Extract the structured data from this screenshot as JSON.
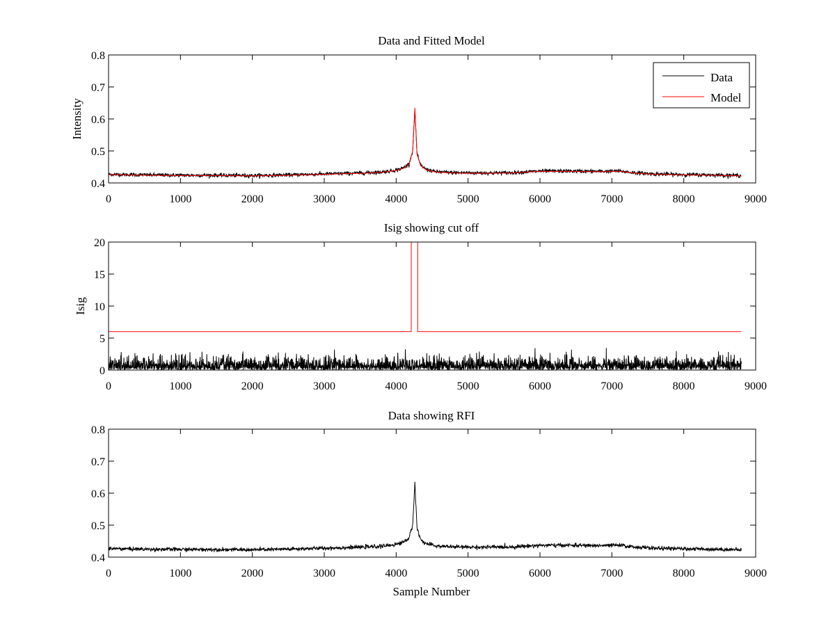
{
  "chart_data": [
    {
      "type": "line",
      "title": "Data and Fitted Model",
      "xlabel": "",
      "ylabel": "Intensity",
      "xlim": [
        0,
        9000
      ],
      "ylim": [
        0.4,
        0.8
      ],
      "xticks": [
        "0",
        "1000",
        "2000",
        "3000",
        "4000",
        "5000",
        "6000",
        "7000",
        "8000",
        "9000"
      ],
      "yticks": [
        "0.4",
        "0.5",
        "0.6",
        "0.7",
        "0.8"
      ],
      "grid": false,
      "legend": {
        "placement": "top-right",
        "entries": [
          "Data",
          "Model"
        ]
      },
      "series": [
        {
          "name": "Data",
          "color": "#000000",
          "style": "noisy",
          "noise_amplitude": 0.005,
          "x": [
            0,
            500,
            1000,
            1500,
            2000,
            2500,
            3000,
            3500,
            3800,
            4000,
            4100,
            4180,
            4230,
            4260,
            4290,
            4340,
            4420,
            4550,
            4800,
            5200,
            5600,
            6000,
            6400,
            6800,
            7100,
            7300,
            7600,
            8000,
            8400,
            8800
          ],
          "y": [
            0.427,
            0.425,
            0.424,
            0.424,
            0.423,
            0.425,
            0.428,
            0.431,
            0.434,
            0.44,
            0.447,
            0.46,
            0.5,
            0.63,
            0.49,
            0.455,
            0.442,
            0.435,
            0.432,
            0.431,
            0.432,
            0.437,
            0.437,
            0.436,
            0.437,
            0.432,
            0.428,
            0.426,
            0.425,
            0.423
          ]
        },
        {
          "name": "Model",
          "color": "#ff0000",
          "style": "smooth",
          "x": [
            0,
            500,
            1000,
            1500,
            2000,
            2500,
            3000,
            3500,
            3800,
            4000,
            4100,
            4180,
            4230,
            4260,
            4290,
            4340,
            4420,
            4550,
            4800,
            5200,
            5600,
            6000,
            6400,
            6800,
            7100,
            7300,
            7600,
            8000,
            8400,
            8800
          ],
          "y": [
            0.426,
            0.424,
            0.423,
            0.423,
            0.422,
            0.424,
            0.427,
            0.43,
            0.433,
            0.439,
            0.446,
            0.459,
            0.5,
            0.635,
            0.49,
            0.454,
            0.441,
            0.434,
            0.431,
            0.43,
            0.431,
            0.436,
            0.436,
            0.435,
            0.436,
            0.431,
            0.427,
            0.425,
            0.424,
            0.422
          ]
        }
      ]
    },
    {
      "type": "line",
      "title": "Isig showing cut off",
      "xlabel": "",
      "ylabel": "Isig",
      "xlim": [
        0,
        9000
      ],
      "ylim": [
        0,
        20
      ],
      "xticks": [
        "0",
        "1000",
        "2000",
        "3000",
        "4000",
        "5000",
        "6000",
        "7000",
        "8000",
        "9000"
      ],
      "yticks": [
        "0",
        "5",
        "10",
        "15",
        "20"
      ],
      "grid": false,
      "series": [
        {
          "color": "#000000",
          "style": "abs-noise",
          "x_range": [
            0,
            8800
          ],
          "typical_max": 2.5,
          "peak_max": 4.5
        },
        {
          "color": "#ff0000",
          "style": "step",
          "x": [
            0,
            4210,
            4210,
            4300,
            4300,
            8800
          ],
          "y": [
            6,
            6,
            20,
            20,
            6,
            6
          ]
        }
      ]
    },
    {
      "type": "line",
      "title": "Data showing RFI",
      "xlabel": "Sample Number",
      "ylabel": "",
      "xlim": [
        0,
        9000
      ],
      "ylim": [
        0.4,
        0.8
      ],
      "xticks": [
        "0",
        "1000",
        "2000",
        "3000",
        "4000",
        "5000",
        "6000",
        "7000",
        "8000",
        "9000"
      ],
      "yticks": [
        "0.4",
        "0.5",
        "0.6",
        "0.7",
        "0.8"
      ],
      "grid": false,
      "series": [
        {
          "color": "#000000",
          "style": "noisy",
          "noise_amplitude": 0.005,
          "x": [
            0,
            500,
            1000,
            1500,
            2000,
            2500,
            3000,
            3500,
            3800,
            4000,
            4100,
            4180,
            4230,
            4260,
            4290,
            4340,
            4420,
            4550,
            4800,
            5200,
            5600,
            6000,
            6400,
            6800,
            7100,
            7300,
            7600,
            8000,
            8400,
            8800
          ],
          "y": [
            0.427,
            0.425,
            0.424,
            0.424,
            0.423,
            0.425,
            0.428,
            0.431,
            0.434,
            0.44,
            0.447,
            0.46,
            0.5,
            0.635,
            0.49,
            0.455,
            0.442,
            0.435,
            0.432,
            0.431,
            0.432,
            0.437,
            0.437,
            0.436,
            0.437,
            0.432,
            0.428,
            0.426,
            0.425,
            0.423
          ]
        }
      ]
    }
  ]
}
